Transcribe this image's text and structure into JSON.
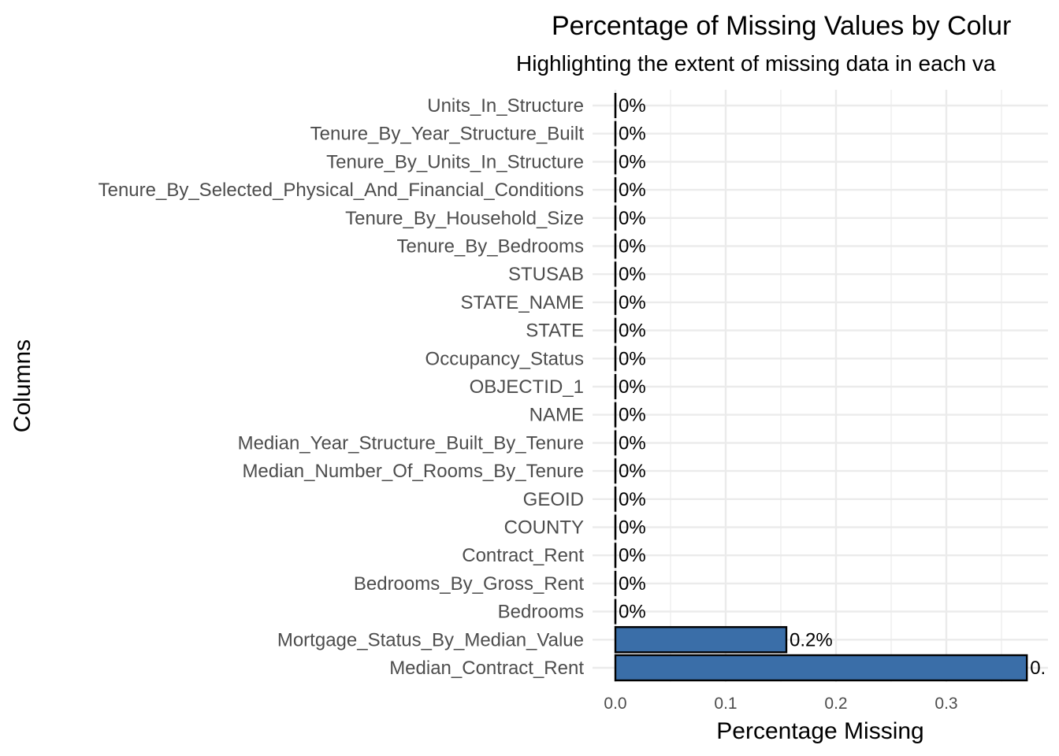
{
  "chart_data": {
    "type": "bar",
    "orientation": "horizontal",
    "title": "Percentage of Missing Values by Colur",
    "subtitle": "Highlighting the extent of missing data in each va",
    "xlabel": "Percentage Missing",
    "ylabel": "Columns",
    "xlim": [
      0,
      0.39
    ],
    "x_ticks": [
      {
        "value": 0.0,
        "label": "0.0"
      },
      {
        "value": 0.1,
        "label": "0.1"
      },
      {
        "value": 0.2,
        "label": "0.2"
      },
      {
        "value": 0.3,
        "label": "0.3"
      }
    ],
    "x_minor_ticks": [
      0.05,
      0.15,
      0.25,
      0.35
    ],
    "grid": true,
    "bar_color": "#3A6EA8",
    "bar_outline": "#000000",
    "categories": [
      "Units_In_Structure",
      "Tenure_By_Year_Structure_Built",
      "Tenure_By_Units_In_Structure",
      "Tenure_By_Selected_Physical_And_Financial_Conditions",
      "Tenure_By_Household_Size",
      "Tenure_By_Bedrooms",
      "STUSAB",
      "STATE_NAME",
      "STATE",
      "Occupancy_Status",
      "OBJECTID_1",
      "NAME",
      "Median_Year_Structure_Built_By_Tenure",
      "Median_Number_Of_Rooms_By_Tenure",
      "GEOID",
      "COUNTY",
      "Contract_Rent",
      "Bedrooms_By_Gross_Rent",
      "Bedrooms",
      "Mortgage_Status_By_Median_Value",
      "Median_Contract_Rent"
    ],
    "values": [
      0,
      0,
      0,
      0,
      0,
      0,
      0,
      0,
      0,
      0,
      0,
      0,
      0,
      0,
      0,
      0,
      0,
      0,
      0,
      0.155,
      0.373
    ],
    "data_labels": [
      "0%",
      "0%",
      "0%",
      "0%",
      "0%",
      "0%",
      "0%",
      "0%",
      "0%",
      "0%",
      "0%",
      "0%",
      "0%",
      "0%",
      "0%",
      "0%",
      "0%",
      "0%",
      "0%",
      "0.2%",
      "0."
    ]
  }
}
